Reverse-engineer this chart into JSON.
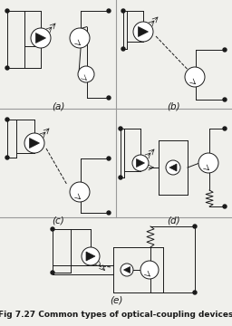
{
  "title": "Fig 7.27 Common types of optical-coupling devices",
  "labels": [
    "(a)",
    "(b)",
    "(c)",
    "(d)",
    "(e)"
  ],
  "bg_color": "#f0f0ec",
  "line_color": "#1a1a1a",
  "grid_color": "#999999",
  "title_fontsize": 6.5,
  "label_fontsize": 7.5
}
